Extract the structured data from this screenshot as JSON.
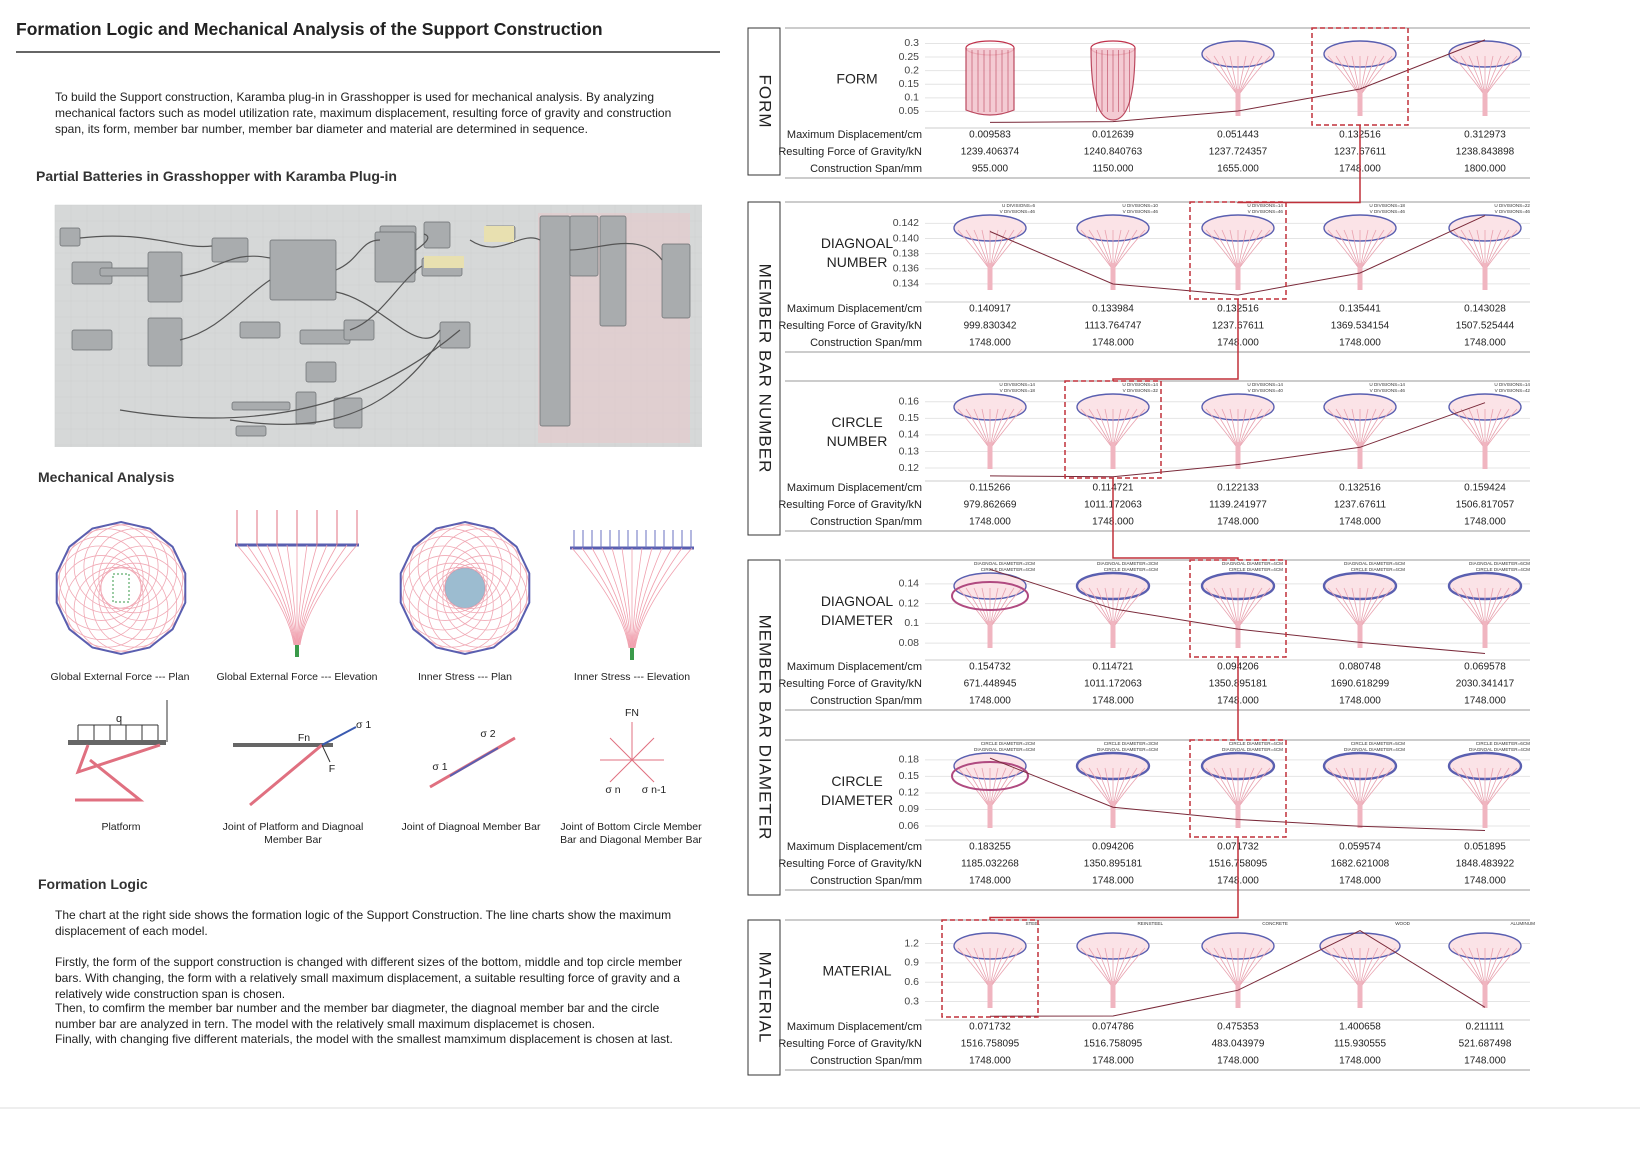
{
  "header": {
    "title": "Formation Logic and Mechanical Analysis of the Support Construction",
    "intro": "To build the Support construction, Karamba plug-in in Grasshopper is used for mechanical analysis. By analyzing mechanical factors such as model utilization rate, maximum displacement, resulting force of gravity and construction span, its form, member bar number, member bar diameter and material are determined in sequence."
  },
  "batteries": {
    "heading": "Partial Batteries in Grasshopper with Karamba Plug-in"
  },
  "mechanical": {
    "heading": "Mechanical Analysis",
    "captions": [
      "Global External Force --- Plan",
      "Global External Force --- Elevation",
      "Inner Stress --- Plan",
      "Inner Stress --- Elevation"
    ],
    "joints": [
      {
        "caption": [
          "Platform"
        ],
        "labels": [
          "q"
        ]
      },
      {
        "caption": [
          "Joint of Platform and Diagnoal",
          "Member Bar"
        ],
        "labels": [
          "Fn",
          "F",
          "σ 1"
        ]
      },
      {
        "caption": [
          "Joint of Diagnoal Member Bar"
        ],
        "labels": [
          "σ 1",
          "σ 2"
        ]
      },
      {
        "caption": [
          "Joint of Bottom Circle Member",
          "Bar and Diagonal Member Bar"
        ],
        "labels": [
          "FN",
          "σ n",
          "σ n-1"
        ]
      }
    ]
  },
  "formation": {
    "heading": "Formation Logic",
    "paragraphs": [
      "The chart at the right side shows the formation logic of the Support Construction. The line charts show the maximum displacement of each model.",
      "Firstly, the form of the support construction is changed with different sizes of the bottom, middle and top circle member bars. With changing, the form with a relatively small maximum displacement, a suitable resulting force of gravity and a relatively wide construction span is chosen.",
      "Then, to comfirm the member bar number and the member bar diagmeter, the diagnoal member bar and the circle number bar are analyzed in tern. The model with the relatively small maximum displacemet is chosen.",
      "Finally, with changing five different materials, the model with the smallest mamximum displacement is chosen at last."
    ]
  },
  "groups": [
    "FORM",
    "MEMBER BAR NUMBER",
    "MEMBER BAR DIAMETER",
    "MATERIAL"
  ],
  "table_labels": [
    "Maximum Displacement/cm",
    "Resulting Force of Gravity/kN",
    "Construction Span/mm"
  ],
  "rows": [
    {
      "label": [
        "FORM"
      ],
      "yticks": [
        0.3,
        0.25,
        0.2,
        0.15,
        0.1,
        0.05
      ],
      "ylim": [
        0,
        0.32
      ],
      "highlight": 3,
      "models": [],
      "displacement": [
        "0.009583",
        "0.012639",
        "0.051443",
        "0.132516",
        "0.312973"
      ],
      "gravity": [
        "1239.406374",
        "1240.840763",
        "1237.724357",
        "1237.67611",
        "1238.843898"
      ],
      "span": [
        "955.000",
        "1150.000",
        "1655.000",
        "1748.000",
        "1800.000"
      ]
    },
    {
      "label": [
        "DIAGNOAL",
        "NUMBER"
      ],
      "yticks": [
        0.142,
        {
          "value": 0.14,
          "label": "0.140"
        },
        0.138,
        0.136,
        0.134
      ],
      "ylim": [
        0.132,
        0.1435
      ],
      "highlight": 2,
      "models": [
        [
          "U DIVISIONS=6",
          "V DIVISIONS=46"
        ],
        [
          "U DIVISIONS=10",
          "V DIVISIONS=46"
        ],
        [
          "U DIVISIONS=14",
          "V DIVISIONS=46"
        ],
        [
          "U DIVISIONS=18",
          "V DIVISIONS=46"
        ],
        [
          "U DIVISIONS=22",
          "V DIVISIONS=46"
        ]
      ],
      "displacement": [
        "0.140917",
        "0.133984",
        "0.132516",
        "0.135441",
        "0.143028"
      ],
      "gravity": [
        "999.830342",
        "1113.764747",
        "1237.67611",
        "1369.534154",
        "1507.525444"
      ],
      "span": [
        "1748.000",
        "1748.000",
        "1748.000",
        "1748.000",
        "1748.000"
      ]
    },
    {
      "label": [
        "CIRCLE",
        "NUMBER"
      ],
      "yticks": [
        0.16,
        0.15,
        0.14,
        0.13,
        0.12
      ],
      "ylim": [
        0.114,
        0.1665
      ],
      "highlight": 1,
      "models": [
        [
          "U DIVISIONS=14",
          "V DIVISIONS=18"
        ],
        [
          "U DIVISIONS=14",
          "V DIVISIONS=32"
        ],
        [
          "U DIVISIONS=14",
          "V DIVISIONS=40"
        ],
        [
          "U DIVISIONS=14",
          "V DIVISIONS=46"
        ],
        [
          "U DIVISIONS=14",
          "V DIVISIONS=42"
        ]
      ],
      "displacement": [
        "0.115266",
        "0.114721",
        "0.122133",
        "0.132516",
        "0.159424"
      ],
      "gravity": [
        "979.862669",
        "1011.172063",
        "1139.241977",
        "1237.67611",
        "1506.817057"
      ],
      "span": [
        "1748.000",
        "1748.000",
        "1748.000",
        "1748.000",
        "1748.000"
      ]
    },
    {
      "label": [
        "DIAGNOAL",
        "DIAMETER"
      ],
      "yticks": [
        0.14,
        0.12,
        0.1,
        0.08
      ],
      "ylim": [
        0.066,
        0.154
      ],
      "highlight": 2,
      "models": [
        [
          "DIAGNOAL DIAMETER=2CM",
          "CIRCLE DIAMETER=4CM"
        ],
        [
          "DIAGNOAL DIAMETER=3CM",
          "CIRCLE DIAMETER=4CM"
        ],
        [
          "DIAGNOAL DIAMETER=4CM",
          "CIRCLE DIAMETER=4CM"
        ],
        [
          "DIAGNOAL DIAMETER=5CM",
          "CIRCLE DIAMETER=4CM"
        ],
        [
          "DIAGNOAL DIAMETER=6CM",
          "CIRCLE DIAMETER=4CM"
        ]
      ],
      "displacement": [
        "0.154732",
        "0.114721",
        "0.094206",
        "0.080748",
        "0.069578"
      ],
      "gravity": [
        "671.448945",
        "1011.172063",
        "1350.895181",
        "1690.618299",
        "2030.341417"
      ],
      "span": [
        "1748.000",
        "1748.000",
        "1748.000",
        "1748.000",
        "1748.000"
      ]
    },
    {
      "label": [
        "CIRCLE",
        "DIAMETER"
      ],
      "yticks": [
        0.18,
        0.15,
        0.12,
        0.09,
        0.06
      ],
      "ylim": [
        0.04,
        0.198
      ],
      "highlight": 2,
      "models": [
        [
          "CIRCLE DIAMETER=2CM",
          "DIAGNOAL DIAMETER=4CM"
        ],
        [
          "CIRCLE DIAMETER=3CM",
          "DIAGNOAL DIAMETER=4CM"
        ],
        [
          "CIRCLE DIAMETER=4CM",
          "DIAGNOAL DIAMETER=4CM"
        ],
        [
          "CIRCLE DIAMETER=5CM",
          "DIAGNOAL DIAMETER=4CM"
        ],
        [
          "CIRCLE DIAMETER=6CM",
          "DIAGNOAL DIAMETER=4CM"
        ]
      ],
      "displacement": [
        "0.183255",
        "0.094206",
        "0.071732",
        "0.059574",
        "0.051895"
      ],
      "gravity": [
        "1185.032268",
        "1350.895181",
        "1516.758095",
        "1682.621008",
        "1848.483922"
      ],
      "span": [
        "1748.000",
        "1748.000",
        "1748.000",
        "1748.000",
        "1748.000"
      ]
    },
    {
      "label": [
        "MATERIAL"
      ],
      "yticks": [
        1.2,
        0.9,
        0.6,
        0.3
      ],
      "ylim": [
        0.06,
        1.41
      ],
      "highlight": 0,
      "models": [
        [
          "STEEL"
        ],
        [
          "REINSTEEL"
        ],
        [
          "CONCRETE"
        ],
        [
          "WOOD"
        ],
        [
          "ALUMINUM"
        ]
      ],
      "displacement": [
        "0.071732",
        "0.074786",
        "0.475353",
        "1.400658",
        "0.211111"
      ],
      "gravity": [
        "1516.758095",
        "1516.758095",
        "483.043979",
        "115.930555",
        "521.687498"
      ],
      "span": [
        "1748.000",
        "1748.000",
        "1748.000",
        "1748.000",
        "1748.000"
      ]
    }
  ]
}
